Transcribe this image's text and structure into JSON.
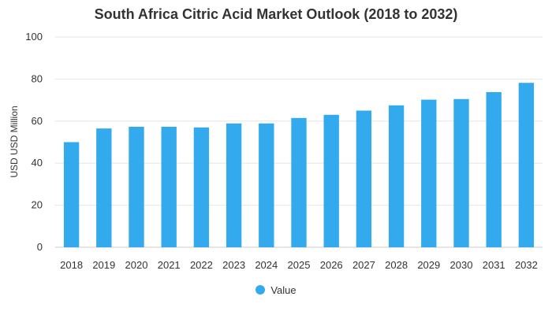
{
  "chart_data": {
    "type": "bar",
    "title": "South Africa Citric Acid Market Outlook (2018 to 2032)",
    "xlabel": "",
    "ylabel": "USD USD Million",
    "categories": [
      "2018",
      "2019",
      "2020",
      "2021",
      "2022",
      "2023",
      "2024",
      "2025",
      "2026",
      "2027",
      "2028",
      "2029",
      "2030",
      "2031",
      "2032"
    ],
    "series": [
      {
        "name": "Value",
        "values": [
          50.0,
          56.5,
          57.3,
          57.3,
          57.0,
          58.9,
          58.9,
          61.5,
          63.0,
          65.0,
          67.5,
          70.2,
          70.5,
          73.8,
          78.2
        ]
      }
    ],
    "ylim": [
      0,
      100
    ],
    "yticks": [
      0,
      20,
      40,
      60,
      80,
      100
    ],
    "grid": true,
    "legend": "bottom-center",
    "colors": {
      "bar": "#33aaee",
      "grid": "#e6e6e6",
      "text": "#333333"
    }
  }
}
